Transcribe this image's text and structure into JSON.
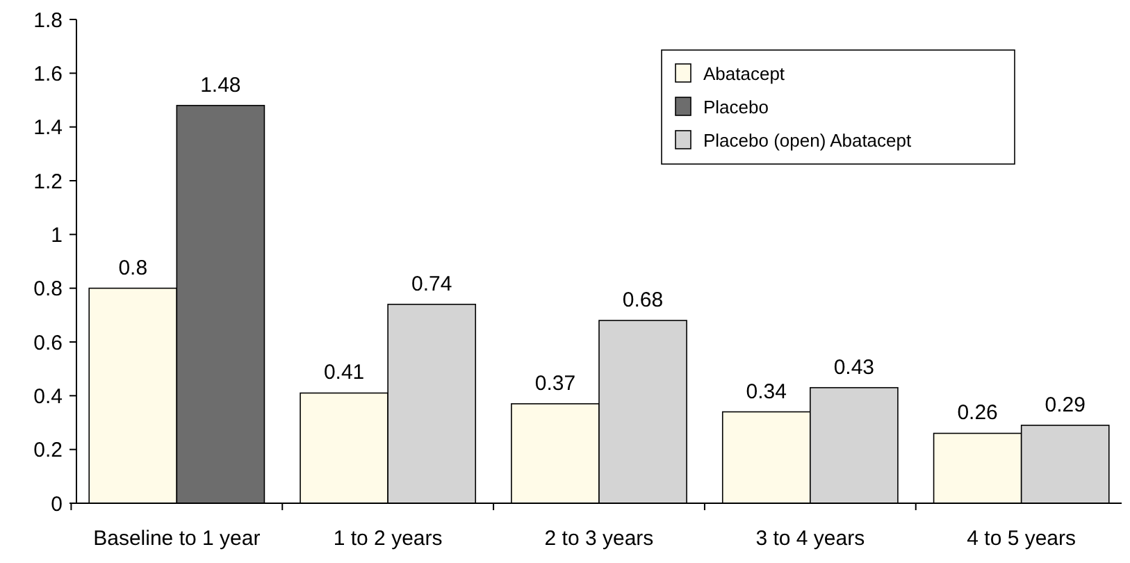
{
  "chart_data": {
    "type": "bar",
    "categories": [
      "Baseline to 1 year",
      "1 to 2 years",
      "2 to 3 years",
      "3 to 4 years",
      "4 to 5 years"
    ],
    "series": [
      {
        "name": "Abatacept",
        "color": "#fffbe8",
        "values": [
          0.8,
          0.41,
          0.37,
          0.34,
          0.26
        ]
      },
      {
        "name": "Placebo",
        "color": "#6d6d6d",
        "values": [
          1.48,
          null,
          null,
          null,
          null
        ]
      },
      {
        "name": "Placebo (open) Abatacept",
        "color": "#d4d4d4",
        "values": [
          null,
          0.74,
          0.68,
          0.43,
          0.29
        ]
      }
    ],
    "ylim": [
      0,
      1.8
    ],
    "yticks": [
      0,
      {
        "value": 0.2,
        "label": "0.2"
      },
      {
        "value": 0.4,
        "label": "0.4"
      },
      {
        "value": 0.6,
        "label": "0.6"
      },
      {
        "value": 0.8,
        "label": "0.8"
      },
      1,
      {
        "value": 1.2,
        "label": "1.2"
      },
      {
        "value": 1.4,
        "label": "1.4"
      },
      {
        "value": 1.6,
        "label": "1.6"
      },
      {
        "value": 1.8,
        "label": "1.8"
      }
    ],
    "data_labels": true,
    "legend": "top right",
    "grid": false
  }
}
